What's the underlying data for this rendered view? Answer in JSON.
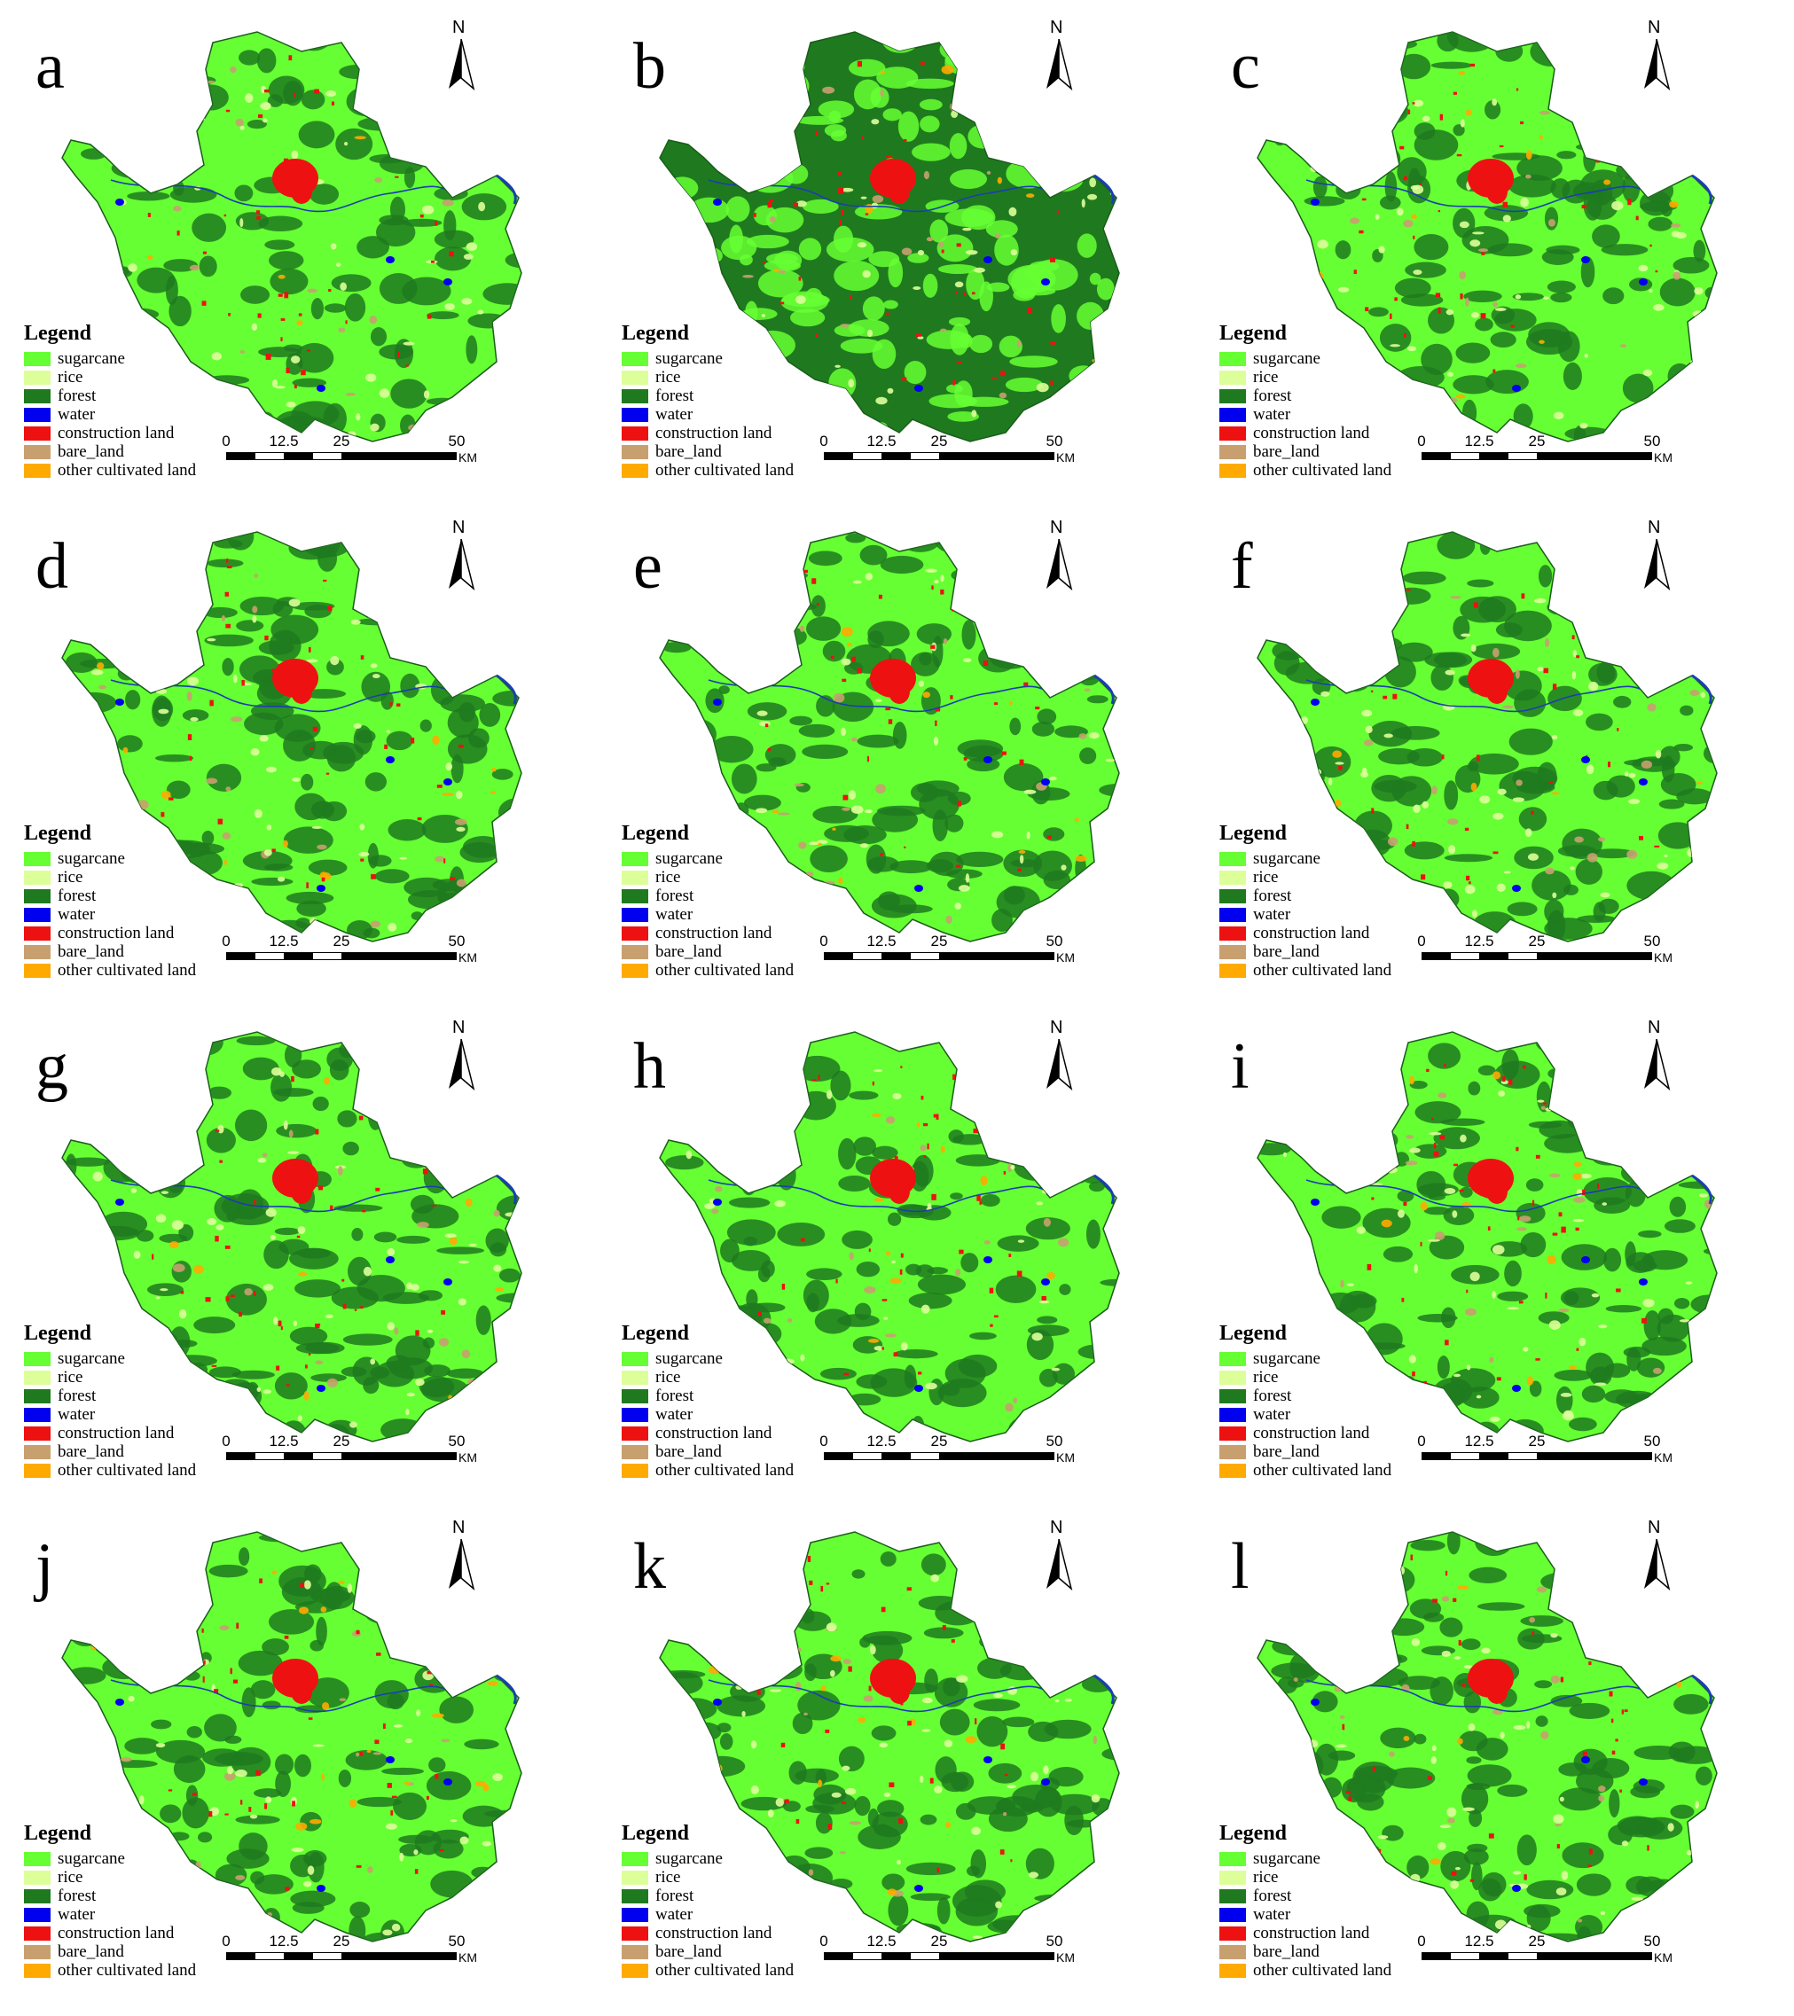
{
  "panels": [
    {
      "label": "a"
    },
    {
      "label": "b"
    },
    {
      "label": "c"
    },
    {
      "label": "d"
    },
    {
      "label": "e"
    },
    {
      "label": "f"
    },
    {
      "label": "g"
    },
    {
      "label": "h"
    },
    {
      "label": "i"
    },
    {
      "label": "j"
    },
    {
      "label": "k"
    },
    {
      "label": "l"
    }
  ],
  "legend": {
    "title": "Legend",
    "items": [
      {
        "label": "sugarcane",
        "color": "#66ff33"
      },
      {
        "label": "rice",
        "color": "#ddff99"
      },
      {
        "label": "forest",
        "color": "#1f7a1f"
      },
      {
        "label": "water",
        "color": "#0000ee"
      },
      {
        "label": "construction land",
        "color": "#ee1111"
      },
      {
        "label": "bare_land",
        "color": "#c8a070"
      },
      {
        "label": "other cultivated land",
        "color": "#ffaa00"
      }
    ]
  },
  "north_arrow": {
    "label": "N"
  },
  "scale_bar": {
    "ticks": [
      "0",
      "12.5",
      "25",
      "50"
    ],
    "unit": "KM"
  }
}
